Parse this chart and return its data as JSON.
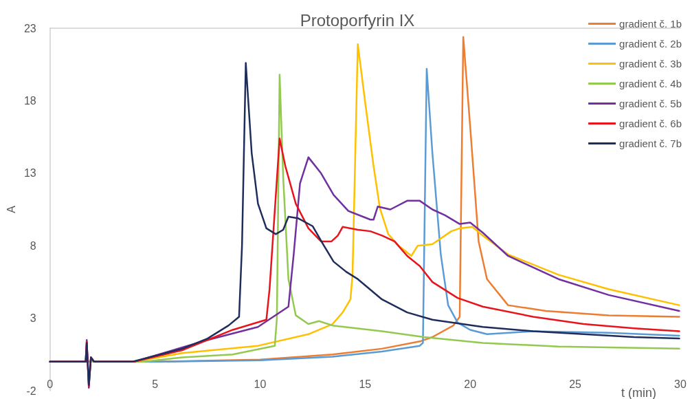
{
  "chart_data": {
    "type": "line",
    "title": "Protoporfyrin IX",
    "xlabel": "t (min)",
    "ylabel": "A",
    "xlim": [
      0,
      30
    ],
    "xticks": [
      0,
      5,
      10,
      15,
      20,
      25,
      30
    ],
    "ylim": [
      -2,
      23
    ],
    "yticks": [
      -2,
      3,
      8,
      13,
      18,
      23
    ],
    "grid": false,
    "legend": "top right",
    "marker": "none",
    "line_style": "solid",
    "series": [
      {
        "name": "gradient č. 1b",
        "color": "#ed7d31",
        "x": [
          0,
          5,
          10,
          13.45,
          15.8,
          17.6,
          18.2,
          19.2,
          19.5,
          19.67,
          20.0,
          20.4,
          20.8,
          21.8,
          23.6,
          26.6,
          29.95
        ],
        "values": [
          0,
          0,
          0.15,
          0.5,
          0.9,
          1.4,
          1.7,
          2.5,
          3.1,
          22.4,
          16.2,
          8.3,
          5.7,
          3.9,
          3.5,
          3.2,
          3.1
        ]
      },
      {
        "name": "gradient č. 2b",
        "color": "#5b9bd5",
        "x": [
          0,
          5,
          10,
          13.45,
          15.8,
          17.6,
          17.75,
          17.93,
          18.2,
          18.6,
          18.95,
          19.4,
          20.0,
          20.8,
          23.0,
          26.6,
          29.95
        ],
        "values": [
          0,
          0,
          0.1,
          0.35,
          0.7,
          1.1,
          1.3,
          20.2,
          14.4,
          7.4,
          3.9,
          2.7,
          2.2,
          1.9,
          2.1,
          2.0,
          1.8
        ]
      },
      {
        "name": "gradient č. 3b",
        "color": "#ffc000",
        "x": [
          0,
          4,
          6.3,
          9.9,
          12.3,
          13.45,
          13.93,
          14.3,
          14.4,
          14.65,
          15.0,
          15.4,
          15.7,
          16.1,
          16.6,
          17.2,
          17.5,
          18.2,
          19.1,
          19.5,
          20.1,
          20.6,
          21.8,
          24.2,
          26.6,
          29.95
        ],
        "values": [
          0,
          0,
          0.6,
          1.1,
          1.9,
          2.6,
          3.4,
          4.3,
          6,
          21.9,
          17.9,
          13.5,
          10.6,
          8.8,
          8.0,
          7.3,
          8.0,
          8.1,
          9.0,
          9.2,
          9.3,
          8.7,
          7.4,
          6.0,
          5.0,
          3.9
        ]
      },
      {
        "name": "gradient č. 4b",
        "color": "#92c94e",
        "x": [
          0,
          4.5,
          6.3,
          8.7,
          10.7,
          10.8,
          10.93,
          11.1,
          11.35,
          11.7,
          12.3,
          12.8,
          13.45,
          15.8,
          17.8,
          20.6,
          24.2,
          29.95
        ],
        "values": [
          0,
          0,
          0.3,
          0.5,
          1.1,
          3,
          19.8,
          12.7,
          5.7,
          3.2,
          2.6,
          2.8,
          2.5,
          2.1,
          1.7,
          1.3,
          1.05,
          0.9
        ]
      },
      {
        "name": "gradient č. 5b",
        "color": "#7030a0",
        "x": [
          0,
          1.7,
          1.75,
          1.85,
          1.95,
          2.1,
          4,
          7.5,
          9.9,
          11.35,
          11.6,
          11.9,
          12.3,
          12.9,
          13.5,
          14.2,
          15.25,
          15.4,
          15.6,
          16.2,
          17.0,
          17.6,
          18.2,
          18.8,
          19.5,
          20.0,
          20.6,
          21.8,
          24.2,
          26.6,
          29.95
        ],
        "values": [
          0,
          0,
          1.5,
          -1.8,
          0.3,
          0,
          0,
          1.5,
          2.4,
          3.8,
          7.4,
          12.3,
          14.1,
          13.0,
          11.5,
          10.4,
          9.8,
          9.8,
          10.7,
          10.5,
          11.1,
          11.1,
          10.5,
          10.1,
          9.5,
          9.6,
          8.9,
          7.3,
          5.7,
          4.6,
          3.5
        ]
      },
      {
        "name": "gradient č. 6b",
        "color": "#e8141c",
        "x": [
          0,
          1.7,
          1.75,
          1.85,
          1.95,
          2.1,
          4,
          6.3,
          8.7,
          10.3,
          10.45,
          10.93,
          11.2,
          11.7,
          12.3,
          12.9,
          13.4,
          13.7,
          13.93,
          14.65,
          15.25,
          15.8,
          16.4,
          17.0,
          17.6,
          18.2,
          19.4,
          20.6,
          23.0,
          25.4,
          27.8,
          29.95
        ],
        "values": [
          0,
          0,
          1.4,
          -1.7,
          0.3,
          0,
          0,
          0.8,
          2.2,
          2.9,
          5,
          15.4,
          13.5,
          10.9,
          9.2,
          8.3,
          8.3,
          8.7,
          9.3,
          9.1,
          9.0,
          8.7,
          8.3,
          7.3,
          6.6,
          5.5,
          4.4,
          3.8,
          3.1,
          2.6,
          2.3,
          2.1
        ]
      },
      {
        "name": "gradient č. 7b",
        "color": "#1f2d5c",
        "x": [
          0,
          1.7,
          1.75,
          1.85,
          1.95,
          2.1,
          3.9,
          6.3,
          7.5,
          8.5,
          9.0,
          9.14,
          9.32,
          9.6,
          9.9,
          10.3,
          10.75,
          11.1,
          11.35,
          11.8,
          12.5,
          13.0,
          13.5,
          14.1,
          14.65,
          15.8,
          17.0,
          18.2,
          20.6,
          23.0,
          25.4,
          27.8,
          29.95
        ],
        "values": [
          0,
          0,
          1.3,
          -1.6,
          0.3,
          0,
          0,
          0.9,
          1.6,
          2.5,
          3.1,
          8,
          20.6,
          14.4,
          10.9,
          9.2,
          8.8,
          9.1,
          10.0,
          9.9,
          9.35,
          8.1,
          6.9,
          6.2,
          5.7,
          4.3,
          3.4,
          2.9,
          2.4,
          2.1,
          1.9,
          1.7,
          1.6
        ]
      }
    ]
  }
}
